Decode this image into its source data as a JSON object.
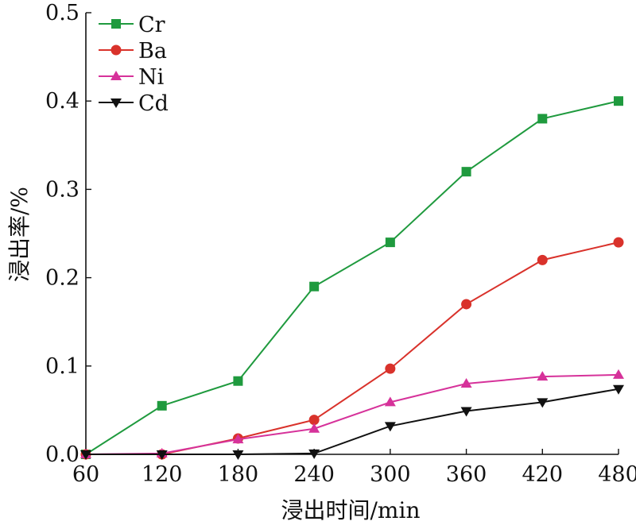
{
  "chart_data": {
    "type": "line",
    "title": "",
    "xlabel": "浸出时间/min",
    "ylabel": "浸出率/%",
    "x": [
      60,
      120,
      180,
      240,
      300,
      360,
      420,
      480
    ],
    "xticks": [
      "60",
      "120",
      "180",
      "240",
      "300",
      "360",
      "420",
      "480"
    ],
    "xlim": [
      60,
      480
    ],
    "ylim": [
      0,
      0.5
    ],
    "yticks": [
      "0.0",
      "0.1",
      "0.2",
      "0.3",
      "0.4",
      "0.5"
    ],
    "grid": false,
    "legend_position": "top-left",
    "series": [
      {
        "name": "Cr",
        "color": "#1f9a3e",
        "marker": "square",
        "values": [
          0.0,
          0.055,
          0.083,
          0.19,
          0.24,
          0.32,
          0.38,
          0.4
        ]
      },
      {
        "name": "Ba",
        "color": "#d9322b",
        "marker": "circle",
        "values": [
          0.0,
          0.0,
          0.018,
          0.039,
          0.097,
          0.17,
          0.22,
          0.24
        ]
      },
      {
        "name": "Ni",
        "color": "#d6329a",
        "marker": "triangle-up",
        "values": [
          0.0,
          0.001,
          0.017,
          0.029,
          0.059,
          0.08,
          0.088,
          0.09
        ]
      },
      {
        "name": "Cd",
        "color": "#111111",
        "marker": "triangle-down",
        "values": [
          0.0,
          0.0,
          0.0,
          0.001,
          0.032,
          0.049,
          0.059,
          0.074
        ]
      }
    ]
  }
}
